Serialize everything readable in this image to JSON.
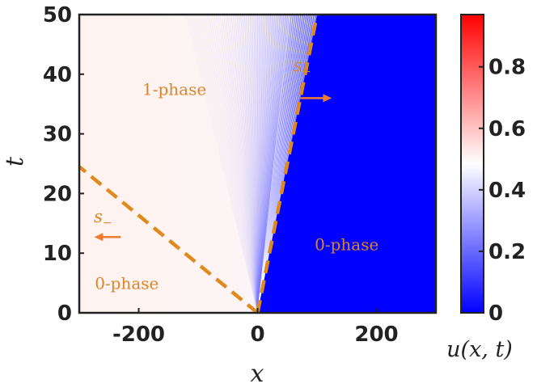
{
  "chart_data": {
    "type": "heatmap",
    "xlabel": "x",
    "ylabel": "t",
    "xlim": [
      -300,
      300
    ],
    "ylim": [
      0,
      50
    ],
    "x_ticks": [
      -200,
      0,
      200
    ],
    "y_ticks": [
      0,
      10,
      20,
      30,
      40,
      50
    ],
    "colorbar": {
      "label": "u(x,t)",
      "range": [
        0,
        0.97
      ],
      "ticks": [
        0,
        0.2,
        0.4,
        0.6,
        0.8
      ],
      "tick_labels": [
        "0",
        "0.2",
        "0.4",
        "0.6",
        "0.8"
      ],
      "colormap": [
        "#0000ff",
        "#ffffff",
        "#ff0000"
      ]
    },
    "regions": [
      {
        "label": "1-phase",
        "x": -140,
        "t": 36.5
      },
      {
        "label": "0-phase",
        "x": 150,
        "t": 10.5
      },
      {
        "label": "0-phase",
        "x": -220,
        "t": 4
      }
    ],
    "fronts": [
      {
        "name": "s₊",
        "from": [
          0,
          0
        ],
        "to": [
          100,
          50
        ],
        "label_pos": [
          -300,
          12
        ],
        "arrow": "right",
        "label_x": 60,
        "label_t": 39
      },
      {
        "name": "s₋",
        "from": [
          0,
          0
        ],
        "to": [
          -300,
          24.5
        ],
        "arrow": "left"
      }
    ],
    "front_labels": [
      {
        "text": "s",
        "sub": "+",
        "x": 75,
        "t": 40.5,
        "arrow_from": 72,
        "arrow_to": 125,
        "arrow_t": 36
      },
      {
        "text": "s",
        "sub": "−",
        "x": -260,
        "t": 15.2,
        "arrow_from": -230,
        "arrow_to": -275,
        "arrow_t": 12.7
      }
    ],
    "fields": {
      "background_uniform": 0.5,
      "right_region_value": 0,
      "pattern_region_value": 0.5
    },
    "colors": {
      "front": "#e08a1e",
      "annot": "#d9862a",
      "arrow": "#ee7b31",
      "frame": "#222222"
    }
  }
}
